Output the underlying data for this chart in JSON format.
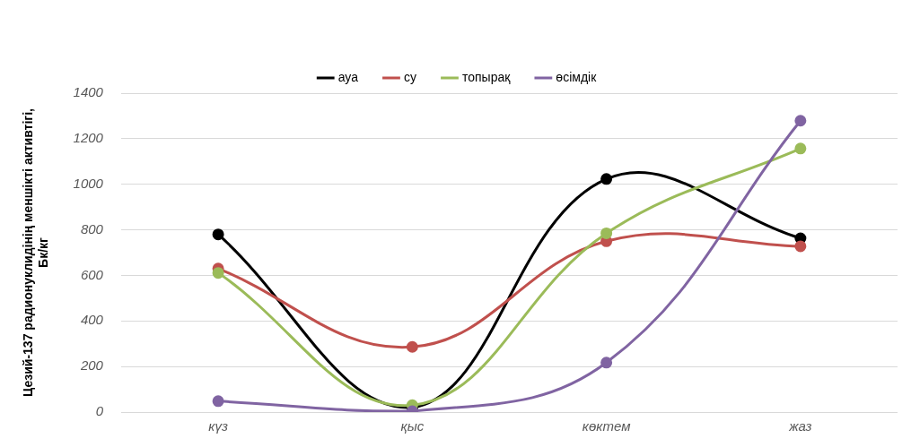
{
  "chart_data": {
    "type": "line",
    "ylabel": "Цезий-137 радионуклидінің меншікті активтігі,\nБк/кг",
    "categories": [
      "күз",
      "қыс",
      "көктем",
      "жаз"
    ],
    "series": [
      {
        "name": "ауа",
        "color": "#000000",
        "values": [
          780,
          20,
          1023,
          763
        ]
      },
      {
        "name": "су",
        "color": "#c0504d",
        "values": [
          630,
          286,
          750,
          728
        ]
      },
      {
        "name": "топырақ",
        "color": "#9bbb59",
        "values": [
          611,
          30,
          785,
          1157
        ]
      },
      {
        "name": "өсімдік",
        "color": "#8064a2",
        "values": [
          48,
          4,
          217,
          1279
        ]
      }
    ],
    "ylim": [
      0,
      1400
    ],
    "yticks": [
      0,
      200,
      400,
      600,
      800,
      1000,
      1200,
      1400
    ],
    "grid": "y",
    "legend": "top",
    "marker": "circle",
    "line_style": "solid"
  }
}
